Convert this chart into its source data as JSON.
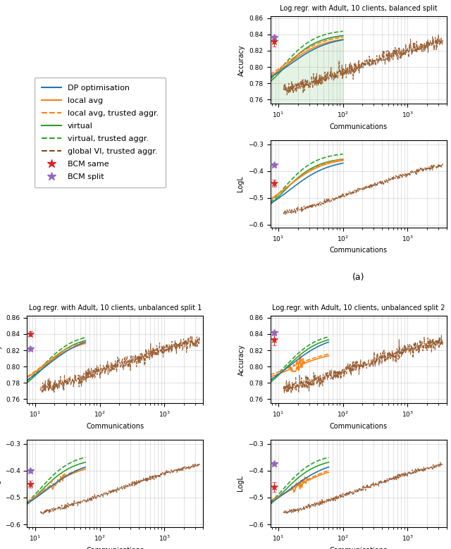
{
  "titles": {
    "a": "Log.regr. with Adult, 10 clients, balanced split",
    "b": "Log.regr. with Adult, 10 clients, unbalanced split 1",
    "c": "Log.regr. with Adult, 10 clients, unbalanced split 2"
  },
  "colors": {
    "dp": "#1f77b4",
    "local_avg": "#ff7f0e",
    "local_avg_trusted": "#ff7f0e",
    "virtual": "#2ca02c",
    "virtual_trusted": "#2ca02c",
    "global_vi": "#8b4513",
    "bcm_same": "#d62728",
    "bcm_split": "#9467bd"
  },
  "ylim_acc": [
    0.755,
    0.862
  ],
  "ylim_logl": [
    -0.61,
    -0.285
  ],
  "xlim_a": [
    7.5,
    4000
  ],
  "xlim_bc": [
    7.5,
    4000
  ],
  "legend_entries": [
    "DP optimisation",
    "local avg",
    "local avg, trusted aggr.",
    "virtual",
    "virtual, trusted aggr.",
    "global VI, trusted aggr.",
    "BCM same",
    "BCM split"
  ]
}
